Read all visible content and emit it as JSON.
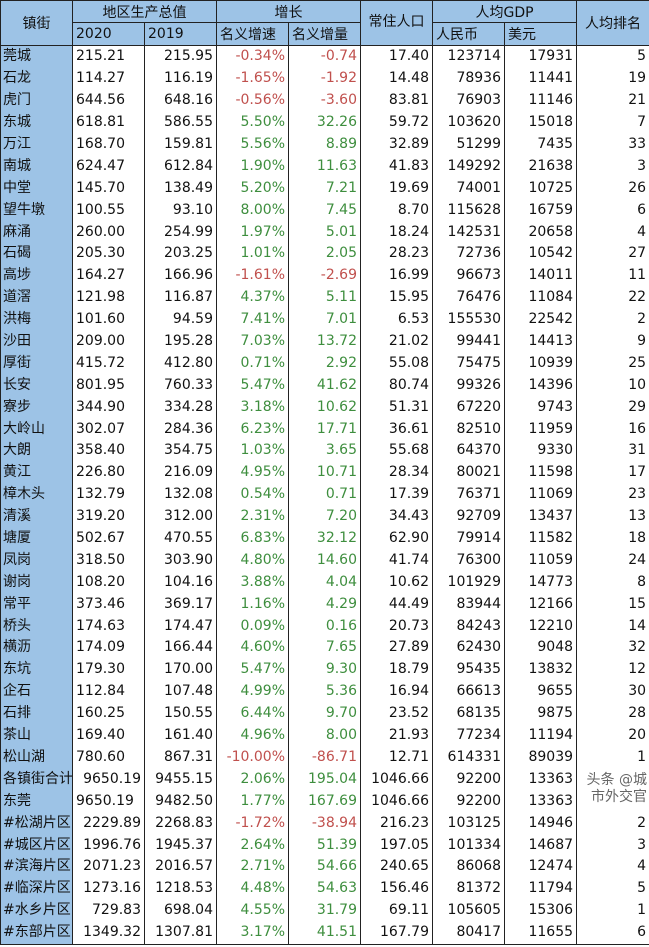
{
  "header": {
    "town": "镇街",
    "gdp": "地区生产总值",
    "y2020": "2020",
    "y2019": "2019",
    "growth": "增长",
    "rate": "名义增速",
    "increment": "名义增量",
    "population": "常住人口",
    "per_capita": "人均GDP",
    "rmb": "人民币",
    "usd": "美元",
    "rank": "人均排名"
  },
  "colors": {
    "header_bg": "#9dc3e6",
    "negative": "#c0504d",
    "positive": "#3e8e3e"
  },
  "rows": [
    [
      "莞城",
      "215.21",
      "215.95",
      "-0.34%",
      "-0.74",
      "17.40",
      "123714",
      "17931",
      "5"
    ],
    [
      "石龙",
      "114.27",
      "116.19",
      "-1.65%",
      "-1.92",
      "14.48",
      "78936",
      "11441",
      "19"
    ],
    [
      "虎门",
      "644.56",
      "648.16",
      "-0.56%",
      "-3.60",
      "83.81",
      "76903",
      "11146",
      "21"
    ],
    [
      "东城",
      "618.81",
      "586.55",
      "5.50%",
      "32.26",
      "59.72",
      "103620",
      "15018",
      "7"
    ],
    [
      "万江",
      "168.70",
      "159.81",
      "5.56%",
      "8.89",
      "32.89",
      "51299",
      "7435",
      "33"
    ],
    [
      "南城",
      "624.47",
      "612.84",
      "1.90%",
      "11.63",
      "41.83",
      "149292",
      "21638",
      "3"
    ],
    [
      "中堂",
      "145.70",
      "138.49",
      "5.20%",
      "7.21",
      "19.69",
      "74001",
      "10725",
      "26"
    ],
    [
      "望牛墩",
      "100.55",
      "93.10",
      "8.00%",
      "7.45",
      "8.70",
      "115628",
      "16759",
      "6"
    ],
    [
      "麻涌",
      "260.00",
      "254.99",
      "1.97%",
      "5.01",
      "18.24",
      "142531",
      "20658",
      "4"
    ],
    [
      "石碣",
      "205.30",
      "203.25",
      "1.01%",
      "2.05",
      "28.23",
      "72736",
      "10542",
      "27"
    ],
    [
      "高埗",
      "164.27",
      "166.96",
      "-1.61%",
      "-2.69",
      "16.99",
      "96673",
      "14011",
      "11"
    ],
    [
      "道滘",
      "121.98",
      "116.87",
      "4.37%",
      "5.11",
      "15.95",
      "76476",
      "11084",
      "22"
    ],
    [
      "洪梅",
      "101.60",
      "94.59",
      "7.41%",
      "7.01",
      "6.53",
      "155530",
      "22542",
      "2"
    ],
    [
      "沙田",
      "209.00",
      "195.28",
      "7.03%",
      "13.72",
      "21.02",
      "99441",
      "14413",
      "9"
    ],
    [
      "厚街",
      "415.72",
      "412.80",
      "0.71%",
      "2.92",
      "55.08",
      "75475",
      "10939",
      "25"
    ],
    [
      "长安",
      "801.95",
      "760.33",
      "5.47%",
      "41.62",
      "80.74",
      "99326",
      "14396",
      "10"
    ],
    [
      "寮步",
      "344.90",
      "334.28",
      "3.18%",
      "10.62",
      "51.31",
      "67220",
      "9743",
      "29"
    ],
    [
      "大岭山",
      "302.07",
      "284.36",
      "6.23%",
      "17.71",
      "36.61",
      "82510",
      "11959",
      "16"
    ],
    [
      "大朗",
      "358.40",
      "354.75",
      "1.03%",
      "3.65",
      "55.68",
      "64370",
      "9330",
      "31"
    ],
    [
      "黄江",
      "226.80",
      "216.09",
      "4.95%",
      "10.71",
      "28.34",
      "80021",
      "11598",
      "17"
    ],
    [
      "樟木头",
      "132.79",
      "132.08",
      "0.54%",
      "0.71",
      "17.39",
      "76371",
      "11069",
      "23"
    ],
    [
      "清溪",
      "319.20",
      "312.00",
      "2.31%",
      "7.20",
      "34.43",
      "92709",
      "13437",
      "13"
    ],
    [
      "塘厦",
      "502.67",
      "470.55",
      "6.83%",
      "32.12",
      "62.90",
      "79914",
      "11582",
      "18"
    ],
    [
      "凤岗",
      "318.50",
      "303.90",
      "4.80%",
      "14.60",
      "41.74",
      "76300",
      "11059",
      "24"
    ],
    [
      "谢岗",
      "108.20",
      "104.16",
      "3.88%",
      "4.04",
      "10.62",
      "101929",
      "14773",
      "8"
    ],
    [
      "常平",
      "373.46",
      "369.17",
      "1.16%",
      "4.29",
      "44.49",
      "83944",
      "12166",
      "15"
    ],
    [
      "桥头",
      "174.63",
      "174.47",
      "0.09%",
      "0.16",
      "20.73",
      "84243",
      "12210",
      "14"
    ],
    [
      "横沥",
      "174.09",
      "166.44",
      "4.60%",
      "7.65",
      "27.89",
      "62430",
      "9048",
      "32"
    ],
    [
      "东坑",
      "179.30",
      "170.00",
      "5.47%",
      "9.30",
      "18.79",
      "95435",
      "13832",
      "12"
    ],
    [
      "企石",
      "112.84",
      "107.48",
      "4.99%",
      "5.36",
      "16.94",
      "66613",
      "9655",
      "30"
    ],
    [
      "石排",
      "160.25",
      "150.55",
      "6.44%",
      "9.70",
      "23.52",
      "68135",
      "9875",
      "28"
    ],
    [
      "茶山",
      "169.40",
      "161.40",
      "4.96%",
      "8.00",
      "21.93",
      "77234",
      "11194",
      "20"
    ],
    [
      "松山湖",
      "780.60",
      "867.31",
      "-10.00%",
      "-86.71",
      "12.71",
      "614331",
      "89039",
      "1"
    ],
    [
      "各镇街合计",
      "9650.19",
      "9455.15",
      "2.06%",
      "195.04",
      "1046.66",
      "92200",
      "13363",
      ""
    ],
    [
      "东莞",
      "9650.19",
      "9482.50",
      "1.77%",
      "167.69",
      "1046.66",
      "92200",
      "13363",
      ""
    ],
    [
      "#松湖片区",
      "2229.89",
      "2268.83",
      "-1.72%",
      "-38.94",
      "216.23",
      "103125",
      "14946",
      "2"
    ],
    [
      "#城区片区",
      "1996.76",
      "1945.37",
      "2.64%",
      "51.39",
      "197.05",
      "101334",
      "14687",
      "3"
    ],
    [
      "#滨海片区",
      "2071.23",
      "2016.57",
      "2.71%",
      "54.66",
      "240.65",
      "86068",
      "12474",
      "4"
    ],
    [
      "#临深片区",
      "1273.16",
      "1218.53",
      "4.48%",
      "54.63",
      "156.46",
      "81372",
      "11794",
      "5"
    ],
    [
      "#水乡片区",
      "729.83",
      "698.04",
      "4.55%",
      "31.79",
      "69.11",
      "105605",
      "15306",
      "1"
    ],
    [
      "#东部片区",
      "1349.32",
      "1307.81",
      "3.17%",
      "41.51",
      "167.79",
      "80417",
      "11655",
      "6"
    ]
  ],
  "watermark": "头条 @城市外交官"
}
